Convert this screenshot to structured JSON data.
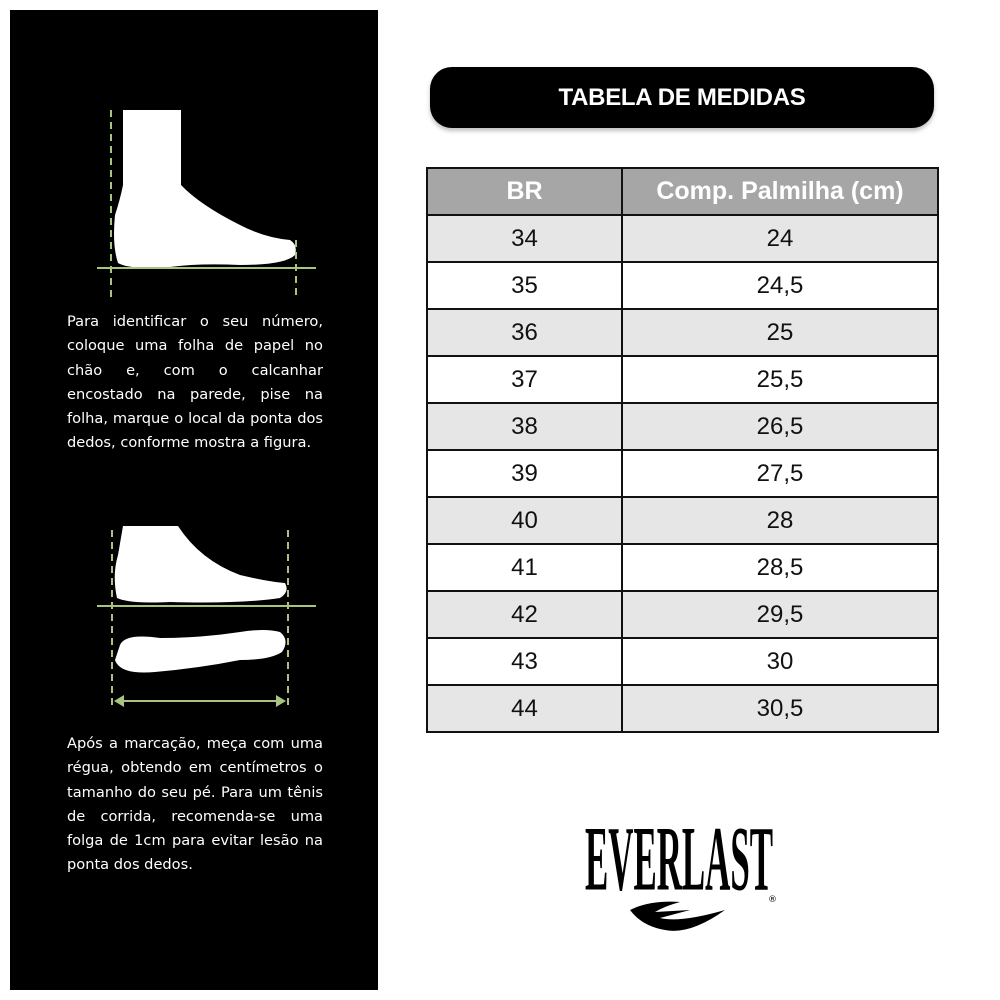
{
  "instructions": {
    "step1": "Para identificar o seu número, coloque uma folha de papel no chão e, com o calcanhar encostado na parede, pise na folha, marque o local da ponta dos dedos, conforme mostra a figura.",
    "step2": "Após a marcação, meça com uma régua, obtendo em centímetros o tamanho do seu pé. Para um tênis de corrida, recomenda-se uma folga de 1cm para evitar lesão na ponta dos dedos."
  },
  "title": "TABELA DE MEDIDAS",
  "table": {
    "headers": [
      "BR",
      "Comp. Palmilha (cm)"
    ],
    "rows": [
      [
        "34",
        "24"
      ],
      [
        "35",
        "24,5"
      ],
      [
        "36",
        "25"
      ],
      [
        "37",
        "25,5"
      ],
      [
        "38",
        "26,5"
      ],
      [
        "39",
        "27,5"
      ],
      [
        "40",
        "28"
      ],
      [
        "41",
        "28,5"
      ],
      [
        "42",
        "29,5"
      ],
      [
        "43",
        "30"
      ],
      [
        "44",
        "30,5"
      ]
    ]
  },
  "logo": {
    "text": "EVERLAST",
    "mark": "®"
  },
  "colors": {
    "panel": "#000000",
    "guide": "#a9c47f",
    "header": "#a6a6a6",
    "alt_row": "#e6e6e6"
  }
}
